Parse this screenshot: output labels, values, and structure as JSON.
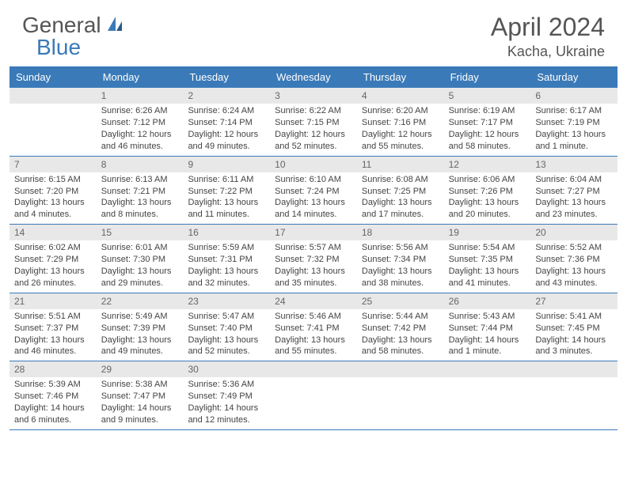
{
  "logo": {
    "general": "General",
    "blue": "Blue"
  },
  "title": "April 2024",
  "location": "Kacha, Ukraine",
  "colors": {
    "header_bg": "#3a7ab8",
    "daynum_bg": "#e8e8e8",
    "text": "#444444",
    "logo_blue": "#3a7ab8",
    "logo_gray": "#555555"
  },
  "dow": [
    "Sunday",
    "Monday",
    "Tuesday",
    "Wednesday",
    "Thursday",
    "Friday",
    "Saturday"
  ],
  "weeks": [
    [
      {
        "n": "",
        "sr": "",
        "ss": "",
        "d1": "",
        "d2": ""
      },
      {
        "n": "1",
        "sr": "Sunrise: 6:26 AM",
        "ss": "Sunset: 7:12 PM",
        "d1": "Daylight: 12 hours",
        "d2": "and 46 minutes."
      },
      {
        "n": "2",
        "sr": "Sunrise: 6:24 AM",
        "ss": "Sunset: 7:14 PM",
        "d1": "Daylight: 12 hours",
        "d2": "and 49 minutes."
      },
      {
        "n": "3",
        "sr": "Sunrise: 6:22 AM",
        "ss": "Sunset: 7:15 PM",
        "d1": "Daylight: 12 hours",
        "d2": "and 52 minutes."
      },
      {
        "n": "4",
        "sr": "Sunrise: 6:20 AM",
        "ss": "Sunset: 7:16 PM",
        "d1": "Daylight: 12 hours",
        "d2": "and 55 minutes."
      },
      {
        "n": "5",
        "sr": "Sunrise: 6:19 AM",
        "ss": "Sunset: 7:17 PM",
        "d1": "Daylight: 12 hours",
        "d2": "and 58 minutes."
      },
      {
        "n": "6",
        "sr": "Sunrise: 6:17 AM",
        "ss": "Sunset: 7:19 PM",
        "d1": "Daylight: 13 hours",
        "d2": "and 1 minute."
      }
    ],
    [
      {
        "n": "7",
        "sr": "Sunrise: 6:15 AM",
        "ss": "Sunset: 7:20 PM",
        "d1": "Daylight: 13 hours",
        "d2": "and 4 minutes."
      },
      {
        "n": "8",
        "sr": "Sunrise: 6:13 AM",
        "ss": "Sunset: 7:21 PM",
        "d1": "Daylight: 13 hours",
        "d2": "and 8 minutes."
      },
      {
        "n": "9",
        "sr": "Sunrise: 6:11 AM",
        "ss": "Sunset: 7:22 PM",
        "d1": "Daylight: 13 hours",
        "d2": "and 11 minutes."
      },
      {
        "n": "10",
        "sr": "Sunrise: 6:10 AM",
        "ss": "Sunset: 7:24 PM",
        "d1": "Daylight: 13 hours",
        "d2": "and 14 minutes."
      },
      {
        "n": "11",
        "sr": "Sunrise: 6:08 AM",
        "ss": "Sunset: 7:25 PM",
        "d1": "Daylight: 13 hours",
        "d2": "and 17 minutes."
      },
      {
        "n": "12",
        "sr": "Sunrise: 6:06 AM",
        "ss": "Sunset: 7:26 PM",
        "d1": "Daylight: 13 hours",
        "d2": "and 20 minutes."
      },
      {
        "n": "13",
        "sr": "Sunrise: 6:04 AM",
        "ss": "Sunset: 7:27 PM",
        "d1": "Daylight: 13 hours",
        "d2": "and 23 minutes."
      }
    ],
    [
      {
        "n": "14",
        "sr": "Sunrise: 6:02 AM",
        "ss": "Sunset: 7:29 PM",
        "d1": "Daylight: 13 hours",
        "d2": "and 26 minutes."
      },
      {
        "n": "15",
        "sr": "Sunrise: 6:01 AM",
        "ss": "Sunset: 7:30 PM",
        "d1": "Daylight: 13 hours",
        "d2": "and 29 minutes."
      },
      {
        "n": "16",
        "sr": "Sunrise: 5:59 AM",
        "ss": "Sunset: 7:31 PM",
        "d1": "Daylight: 13 hours",
        "d2": "and 32 minutes."
      },
      {
        "n": "17",
        "sr": "Sunrise: 5:57 AM",
        "ss": "Sunset: 7:32 PM",
        "d1": "Daylight: 13 hours",
        "d2": "and 35 minutes."
      },
      {
        "n": "18",
        "sr": "Sunrise: 5:56 AM",
        "ss": "Sunset: 7:34 PM",
        "d1": "Daylight: 13 hours",
        "d2": "and 38 minutes."
      },
      {
        "n": "19",
        "sr": "Sunrise: 5:54 AM",
        "ss": "Sunset: 7:35 PM",
        "d1": "Daylight: 13 hours",
        "d2": "and 41 minutes."
      },
      {
        "n": "20",
        "sr": "Sunrise: 5:52 AM",
        "ss": "Sunset: 7:36 PM",
        "d1": "Daylight: 13 hours",
        "d2": "and 43 minutes."
      }
    ],
    [
      {
        "n": "21",
        "sr": "Sunrise: 5:51 AM",
        "ss": "Sunset: 7:37 PM",
        "d1": "Daylight: 13 hours",
        "d2": "and 46 minutes."
      },
      {
        "n": "22",
        "sr": "Sunrise: 5:49 AM",
        "ss": "Sunset: 7:39 PM",
        "d1": "Daylight: 13 hours",
        "d2": "and 49 minutes."
      },
      {
        "n": "23",
        "sr": "Sunrise: 5:47 AM",
        "ss": "Sunset: 7:40 PM",
        "d1": "Daylight: 13 hours",
        "d2": "and 52 minutes."
      },
      {
        "n": "24",
        "sr": "Sunrise: 5:46 AM",
        "ss": "Sunset: 7:41 PM",
        "d1": "Daylight: 13 hours",
        "d2": "and 55 minutes."
      },
      {
        "n": "25",
        "sr": "Sunrise: 5:44 AM",
        "ss": "Sunset: 7:42 PM",
        "d1": "Daylight: 13 hours",
        "d2": "and 58 minutes."
      },
      {
        "n": "26",
        "sr": "Sunrise: 5:43 AM",
        "ss": "Sunset: 7:44 PM",
        "d1": "Daylight: 14 hours",
        "d2": "and 1 minute."
      },
      {
        "n": "27",
        "sr": "Sunrise: 5:41 AM",
        "ss": "Sunset: 7:45 PM",
        "d1": "Daylight: 14 hours",
        "d2": "and 3 minutes."
      }
    ],
    [
      {
        "n": "28",
        "sr": "Sunrise: 5:39 AM",
        "ss": "Sunset: 7:46 PM",
        "d1": "Daylight: 14 hours",
        "d2": "and 6 minutes."
      },
      {
        "n": "29",
        "sr": "Sunrise: 5:38 AM",
        "ss": "Sunset: 7:47 PM",
        "d1": "Daylight: 14 hours",
        "d2": "and 9 minutes."
      },
      {
        "n": "30",
        "sr": "Sunrise: 5:36 AM",
        "ss": "Sunset: 7:49 PM",
        "d1": "Daylight: 14 hours",
        "d2": "and 12 minutes."
      },
      {
        "n": "",
        "sr": "",
        "ss": "",
        "d1": "",
        "d2": ""
      },
      {
        "n": "",
        "sr": "",
        "ss": "",
        "d1": "",
        "d2": ""
      },
      {
        "n": "",
        "sr": "",
        "ss": "",
        "d1": "",
        "d2": ""
      },
      {
        "n": "",
        "sr": "",
        "ss": "",
        "d1": "",
        "d2": ""
      }
    ]
  ]
}
